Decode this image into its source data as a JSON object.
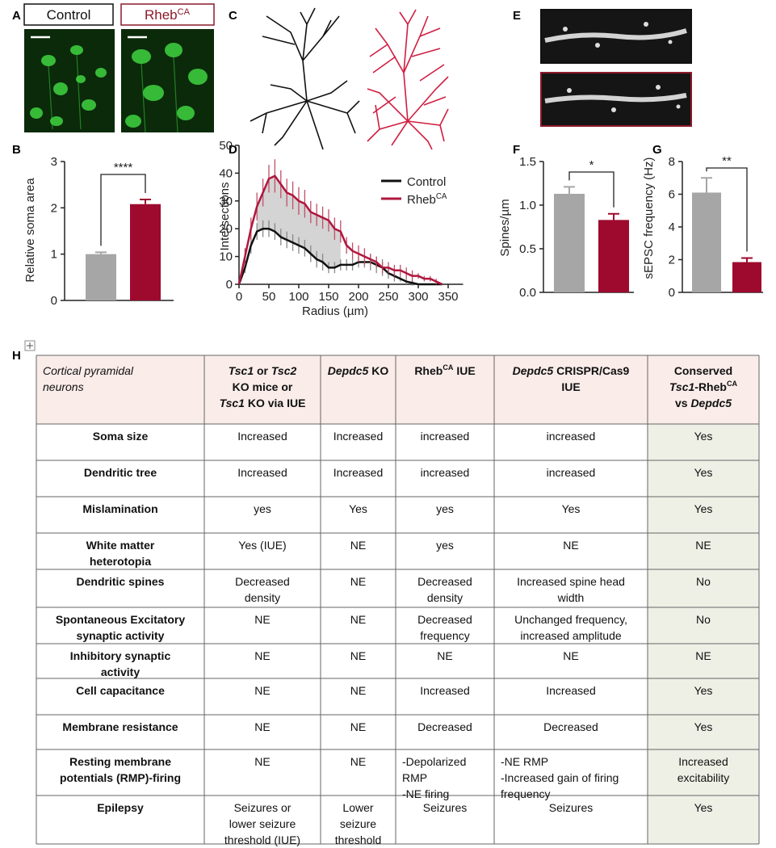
{
  "panel_labels": [
    "A",
    "B",
    "C",
    "D",
    "E",
    "F",
    "G",
    "H"
  ],
  "panel_a": {
    "labels": [
      [
        "Control"
      ],
      [
        "Rheb",
        {
          "text": "CA",
          "style": "sup"
        }
      ]
    ]
  },
  "chart_data": [
    {
      "type": "bar",
      "ylabel": "Relative soma area",
      "categories": [
        null,
        null
      ],
      "values": [
        1.0,
        2.08
      ],
      "errors": [
        0.04,
        0.1
      ],
      "colors": [
        "#a6a6a6",
        "#9e0a2e"
      ],
      "ylim": [
        0,
        3
      ],
      "yticks": [
        0,
        1,
        2,
        3
      ],
      "annotation": "****"
    },
    {
      "type": "line",
      "ylabel": "Intersections",
      "xlabel": "Radius (µm)",
      "x": [
        0,
        10,
        20,
        30,
        40,
        50,
        60,
        70,
        80,
        90,
        100,
        110,
        120,
        130,
        140,
        150,
        160,
        170,
        180,
        190,
        200,
        210,
        220,
        230,
        240,
        250,
        260,
        270,
        280,
        290,
        300,
        310,
        320,
        330,
        340
      ],
      "series": [
        {
          "name": "Control",
          "color": "#111111",
          "values": [
            0,
            6,
            14,
            19,
            20,
            20,
            19,
            17,
            16,
            15,
            14,
            13,
            11,
            9,
            8,
            6,
            6,
            7,
            7,
            7,
            8,
            8,
            8,
            7,
            6,
            4,
            3,
            2,
            1,
            0.5,
            0,
            0,
            0,
            0,
            0
          ],
          "errors": [
            0,
            2,
            3,
            3,
            3,
            3,
            3,
            3,
            3,
            3,
            3,
            3,
            3,
            3,
            3,
            2,
            2,
            2,
            2,
            2,
            2,
            2,
            3,
            3,
            3,
            2,
            2,
            1,
            1,
            1,
            0,
            0,
            0,
            0,
            0
          ]
        },
        {
          "name": "Rheb",
          "name_sup": "CA",
          "color": "#b0173d",
          "values": [
            0,
            10,
            20,
            28,
            33,
            38,
            39,
            36,
            33,
            32,
            30,
            29,
            26,
            25,
            24,
            23,
            20,
            19,
            14,
            12,
            11,
            10,
            9,
            8,
            6,
            6,
            5,
            5,
            4,
            3,
            3,
            2,
            2,
            1,
            0
          ],
          "errors": [
            0,
            3,
            4,
            5,
            5,
            5,
            6,
            5,
            5,
            5,
            5,
            5,
            4,
            4,
            4,
            4,
            4,
            4,
            3,
            3,
            3,
            3,
            2,
            2,
            2,
            2,
            2,
            2,
            2,
            2,
            1,
            1,
            1,
            1,
            0
          ]
        }
      ],
      "shade_range": [
        25,
        175
      ],
      "xlim": [
        0,
        375
      ],
      "xticks": [
        0,
        50,
        100,
        150,
        200,
        250,
        300,
        350
      ],
      "ylim": [
        0,
        50
      ],
      "yticks": [
        0,
        10,
        20,
        30,
        40,
        50
      ]
    },
    {
      "type": "bar",
      "ylabel": "Spines/µm",
      "categories": [
        null,
        null
      ],
      "values": [
        1.13,
        0.83
      ],
      "errors": [
        0.08,
        0.07
      ],
      "colors": [
        "#a6a6a6",
        "#9e0a2e"
      ],
      "ylim": [
        0,
        1.5
      ],
      "yticks": [
        {
          "value": 0,
          "label": "0.0"
        },
        {
          "value": 0.5,
          "label": "0.5"
        },
        {
          "value": 1,
          "label": "1.0"
        },
        {
          "value": 1.5,
          "label": "1.5"
        }
      ],
      "annotation": "*"
    },
    {
      "type": "bar",
      "ylabel": "sEPSC frequency (Hz)",
      "categories": [
        null,
        null
      ],
      "values": [
        6.1,
        1.85
      ],
      "errors": [
        0.9,
        0.25
      ],
      "colors": [
        "#a6a6a6",
        "#9e0a2e"
      ],
      "ylim": [
        0,
        8
      ],
      "yticks": [
        0,
        2,
        4,
        6,
        8
      ],
      "annotation": "**"
    }
  ],
  "table": {
    "header": [
      [
        [
          {
            "text": "Cortical pyramidal",
            "style": "italic"
          }
        ],
        [
          {
            "text": "neurons",
            "style": "italic"
          }
        ]
      ],
      [
        [
          {
            "text": "Tsc1",
            "style": "italic"
          },
          " or ",
          {
            "text": "Tsc2",
            "style": "italic"
          }
        ],
        [
          "KO mice or"
        ],
        [
          {
            "text": "Tsc1",
            "style": "italic"
          },
          " KO via IUE"
        ]
      ],
      [
        [
          {
            "text": "Depdc5",
            "style": "italic"
          },
          " KO"
        ]
      ],
      [
        [
          "Rheb",
          {
            "text": "CA",
            "style": "sup"
          },
          " IUE"
        ]
      ],
      [
        [
          {
            "text": "Depdc5",
            "style": "italic"
          },
          " CRISPR/Cas9"
        ],
        [
          "IUE"
        ]
      ],
      [
        [
          "Conserved"
        ],
        [
          {
            "text": "Tsc1",
            "style": "italic"
          },
          "-Rheb",
          {
            "text": "CA",
            "style": "sup"
          }
        ],
        [
          "vs ",
          {
            "text": "Depdc5",
            "style": "italic"
          }
        ]
      ]
    ],
    "rows": [
      [
        [
          "Soma size"
        ],
        [
          "Increased"
        ],
        [
          "Increased"
        ],
        [
          "increased"
        ],
        [
          "increased"
        ],
        [
          "Yes"
        ]
      ],
      [
        [
          "Dendritic tree"
        ],
        [
          "Increased"
        ],
        [
          "Increased"
        ],
        [
          "increased"
        ],
        [
          "increased"
        ],
        [
          "Yes"
        ]
      ],
      [
        [
          "Mislamination"
        ],
        [
          "yes"
        ],
        [
          "Yes"
        ],
        [
          "yes"
        ],
        [
          "Yes"
        ],
        [
          "Yes"
        ]
      ],
      [
        [
          "White matter",
          "heterotopia"
        ],
        [
          "Yes (IUE)"
        ],
        [
          "NE"
        ],
        [
          "yes"
        ],
        [
          "NE"
        ],
        [
          "NE"
        ]
      ],
      [
        [
          "Dendritic spines"
        ],
        [
          "Decreased",
          "density"
        ],
        [
          "NE"
        ],
        [
          "Decreased",
          "density"
        ],
        [
          "Increased spine head",
          "width"
        ],
        [
          "No"
        ]
      ],
      [
        [
          "Spontaneous Excitatory",
          "synaptic activity"
        ],
        [
          "NE"
        ],
        [
          "NE"
        ],
        [
          "Decreased",
          "frequency"
        ],
        [
          "Unchanged frequency,",
          "increased amplitude"
        ],
        [
          "No"
        ]
      ],
      [
        [
          "Inhibitory synaptic",
          "activity"
        ],
        [
          "NE"
        ],
        [
          "NE"
        ],
        [
          "NE"
        ],
        [
          "NE"
        ],
        [
          "NE"
        ]
      ],
      [
        [
          "Cell capacitance"
        ],
        [
          "NE"
        ],
        [
          "NE"
        ],
        [
          "Increased"
        ],
        [
          "Increased"
        ],
        [
          "Yes"
        ]
      ],
      [
        [
          "Membrane resistance"
        ],
        [
          "NE"
        ],
        [
          "NE"
        ],
        [
          "Decreased"
        ],
        [
          "Decreased"
        ],
        [
          "Yes"
        ]
      ],
      [
        [
          "Resting membrane",
          "potentials (RMP)-firing"
        ],
        [
          "NE"
        ],
        [
          "NE"
        ],
        [
          "-Depolarized",
          "RMP",
          "-NE firing"
        ],
        [
          "-NE RMP",
          "-Increased gain of firing",
          "frequency"
        ],
        [
          "Increased",
          "excitability"
        ]
      ],
      [
        [
          "Epilepsy"
        ],
        [
          "Seizures or",
          "lower seizure",
          "threshold (IUE)"
        ],
        [
          "Lower",
          "seizure",
          "threshold"
        ],
        [
          "Seizures"
        ],
        [
          "Seizures"
        ],
        [
          "Yes"
        ]
      ]
    ]
  }
}
